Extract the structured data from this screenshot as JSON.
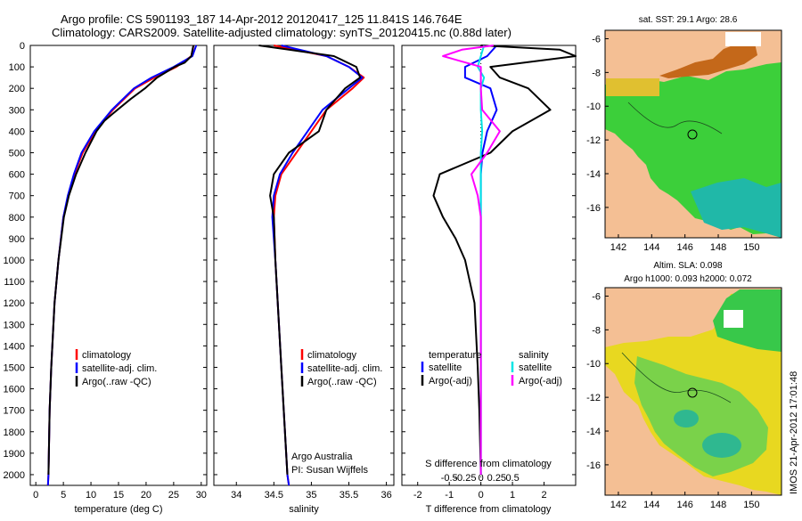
{
  "title": {
    "line1": "Argo profile: CS 5901193_187 14-Apr-2012 20120417_125 11.841S 146.764E",
    "line2": "Climatology: CARS2009. Satellite-adjusted climatology: synTS_20120415.nc (0.88d later)"
  },
  "depth_ticks": [
    "0",
    "100",
    "200",
    "300",
    "400",
    "500",
    "600",
    "700",
    "800",
    "900",
    "1000",
    "1100",
    "1200",
    "1300",
    "1400",
    "1500",
    "1600",
    "1700",
    "1800",
    "1900",
    "2000"
  ],
  "colors": {
    "climatology": "#ff0000",
    "satellite": "#0000ff",
    "argo": "#000000",
    "salinity_sat": "#00e5e5",
    "salinity_argo": "#ff00ff",
    "land": "#f4bf94"
  },
  "legend_profile": {
    "climatology": "climatology",
    "satellite": "satellite-adj. clim.",
    "argo": "Argo(..raw -QC)"
  },
  "legend_diff": {
    "temperature_header": "temperature",
    "salinity_header": "salinity",
    "temp_satellite": "satellite",
    "temp_argo": "Argo(-adj)",
    "sal_satellite": "satellite",
    "sal_argo": "Argo(-adj)"
  },
  "credits": {
    "line1": "Argo Australia",
    "line2": "PI: Susan Wijffels"
  },
  "map_top": {
    "title": "sat. SST: 29.1  Argo: 28.6",
    "y_ticks": [
      "-6",
      "-8",
      "-10",
      "-12",
      "-14",
      "-16"
    ],
    "x_ticks": [
      "142",
      "144",
      "146",
      "148",
      "150"
    ]
  },
  "map_bottom": {
    "title1": "Altim. SLA: 0.098",
    "title2": "Argo h1000: 0.093 h2000: 0.072",
    "y_ticks": [
      "-6",
      "-8",
      "-10",
      "-12",
      "-14",
      "-16"
    ],
    "x_ticks": [
      "142",
      "144",
      "146",
      "148",
      "150"
    ]
  },
  "timestamp": "IMOS 21-Apr-2012 17:01:48",
  "chart_data": [
    {
      "type": "line",
      "xlabel": "temperature (deg C)",
      "xlim": [
        -1,
        31
      ],
      "ylim": [
        2050,
        0
      ],
      "x_ticks": [
        "0",
        "5",
        "10",
        "15",
        "20",
        "25",
        "30"
      ],
      "series": [
        {
          "name": "climatology",
          "depth": [
            0,
            50,
            100,
            150,
            200,
            300,
            400,
            500,
            600,
            700,
            800,
            1000,
            1200,
            1500,
            1700,
            2000,
            2050
          ],
          "values": [
            28.6,
            28.2,
            25.5,
            21.5,
            18,
            14,
            10.8,
            8.5,
            7,
            5.9,
            5.0,
            4.1,
            3.4,
            2.8,
            2.5,
            2.3,
            2.2
          ]
        },
        {
          "name": "satellite-adj. clim.",
          "depth": [
            0,
            50,
            100,
            150,
            200,
            300,
            400,
            500,
            600,
            700,
            800,
            1000,
            1200,
            1500,
            1700,
            2000,
            2050
          ],
          "values": [
            29.1,
            28.4,
            25,
            21,
            17.8,
            13.8,
            10.6,
            8.3,
            6.9,
            5.8,
            5.0,
            4.1,
            3.4,
            2.8,
            2.5,
            2.3,
            2.2
          ]
        },
        {
          "name": "Argo(..raw -QC)",
          "depth": [
            0,
            10,
            50,
            80,
            100,
            150,
            200,
            250,
            300,
            350,
            400,
            500,
            600,
            700,
            800,
            1000,
            1200,
            1500,
            1700,
            2000
          ],
          "values": [
            28.6,
            28.5,
            28.2,
            27,
            25.2,
            22,
            19.8,
            17.2,
            14.8,
            12.5,
            11.0,
            9.0,
            7.3,
            6.0,
            5.1,
            4.1,
            3.4,
            2.8,
            2.5,
            2.3
          ]
        }
      ]
    },
    {
      "type": "line",
      "xlabel": "salinity",
      "xlim": [
        33.7,
        36.1
      ],
      "ylim": [
        2050,
        0
      ],
      "x_ticks": [
        "34",
        "34.5",
        "35",
        "35.5",
        "36"
      ],
      "series": [
        {
          "name": "climatology",
          "depth": [
            0,
            50,
            100,
            150,
            200,
            300,
            400,
            500,
            600,
            700,
            800,
            1000,
            1500,
            2000,
            2050
          ],
          "values": [
            34.5,
            35.2,
            35.5,
            35.7,
            35.55,
            35.2,
            35.0,
            34.8,
            34.6,
            34.52,
            34.5,
            34.52,
            34.6,
            34.68,
            34.7
          ]
        },
        {
          "name": "satellite-adj. clim.",
          "depth": [
            0,
            50,
            100,
            150,
            200,
            300,
            400,
            500,
            600,
            700,
            800,
            1000,
            1500,
            2000,
            2050
          ],
          "values": [
            34.6,
            35.2,
            35.5,
            35.68,
            35.5,
            35.15,
            34.95,
            34.75,
            34.58,
            34.5,
            34.48,
            34.52,
            34.6,
            34.68,
            34.7
          ]
        },
        {
          "name": "Argo(..raw -QC)",
          "depth": [
            0,
            20,
            50,
            100,
            150,
            200,
            300,
            400,
            500,
            600,
            700,
            800,
            1000,
            1500,
            2000
          ],
          "values": [
            34.3,
            34.7,
            35.3,
            35.6,
            35.65,
            35.45,
            35.2,
            35.1,
            34.7,
            34.5,
            34.45,
            34.5,
            34.52,
            34.6,
            34.68
          ]
        }
      ]
    },
    {
      "type": "line",
      "xlabel": "T difference from climatology",
      "xlabel_top": "S difference from climatology",
      "xlim": [
        -2.5,
        3
      ],
      "ylim": [
        2050,
        0
      ],
      "x_ticks": [
        "-2",
        "-1",
        "0",
        "1",
        "2"
      ],
      "x_ticks_top": [
        "-0.5",
        "-0.25",
        "0",
        "0.25",
        "0.5"
      ],
      "series": [
        {
          "name": "temperature satellite",
          "depth": [
            0,
            50,
            100,
            150,
            200,
            300,
            400,
            500,
            600,
            700,
            800,
            1000,
            1500,
            2000
          ],
          "values": [
            0.5,
            0.2,
            -0.5,
            -0.5,
            0.3,
            0.5,
            0.2,
            0.05,
            0.0,
            0.0,
            0.0,
            0.0,
            0.0,
            0.0
          ]
        },
        {
          "name": "temperature Argo(-adj)",
          "depth": [
            0,
            20,
            50,
            100,
            150,
            200,
            300,
            400,
            500,
            600,
            700,
            800,
            900,
            1000,
            1200,
            1500,
            1700,
            2000
          ],
          "values": [
            0,
            2.5,
            3.0,
            0.3,
            0.6,
            1.5,
            2.2,
            1.0,
            0.3,
            -1.3,
            -1.5,
            -1.2,
            -0.8,
            -0.5,
            -0.2,
            -0.1,
            -0.05,
            0
          ]
        },
        {
          "name": "salinity satellite",
          "depth": [
            0,
            50,
            100,
            150,
            200,
            300,
            400,
            500,
            600,
            700,
            800,
            1000,
            1500,
            2000
          ],
          "values": [
            0.05,
            0,
            -0.05,
            0.05,
            0.0,
            0.0,
            0.02,
            0.0,
            0.0,
            0.0,
            0.0,
            0.0,
            0.0,
            0.0
          ]
        },
        {
          "name": "salinity Argo(-adj)",
          "depth": [
            0,
            20,
            50,
            100,
            150,
            200,
            300,
            400,
            500,
            600,
            700,
            800,
            1000,
            1500,
            2000
          ],
          "values": [
            0.2,
            -0.3,
            -0.6,
            0.0,
            0.0,
            0.0,
            0.02,
            0.3,
            0.1,
            -0.15,
            -0.05,
            0.0,
            0.0,
            0.0,
            0.0
          ]
        }
      ]
    }
  ]
}
